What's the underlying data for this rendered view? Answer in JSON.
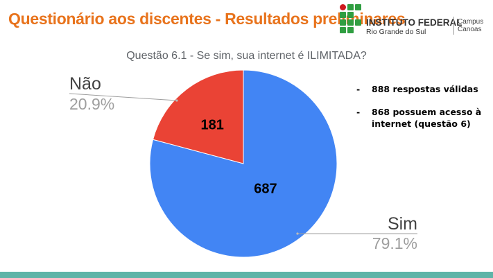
{
  "slide": {
    "title": "Questionário aos discentes - Resultados preliminares"
  },
  "logo": {
    "name": "INSTITUTO FEDERAL",
    "subtitle": "Rio Grande do Sul",
    "campus_line1": "Campus",
    "campus_line2": "Canoas",
    "colors": {
      "green": "#2f9e41",
      "red": "#cd191e"
    }
  },
  "notes": [
    {
      "dash": "-",
      "text": "888 respostas válidas"
    },
    {
      "dash": "-",
      "text": "868 possuem acesso à internet (questão 6)"
    }
  ],
  "chart_data": {
    "type": "pie",
    "title": "Questão 6.1 - Se sim, sua internet é ILIMITADA?",
    "slices": [
      {
        "label": "Não",
        "value": 181,
        "percent": "20.9%",
        "color": "#ea4335"
      },
      {
        "label": "Sim",
        "value": 687,
        "percent": "79.1%",
        "color": "#4285f4"
      }
    ],
    "start": "top, clockwise",
    "data_labels": "values inside slices",
    "legend": "none"
  },
  "theme": {
    "accent": "#e8731c",
    "bottom_bar": "#5fb4a8"
  }
}
